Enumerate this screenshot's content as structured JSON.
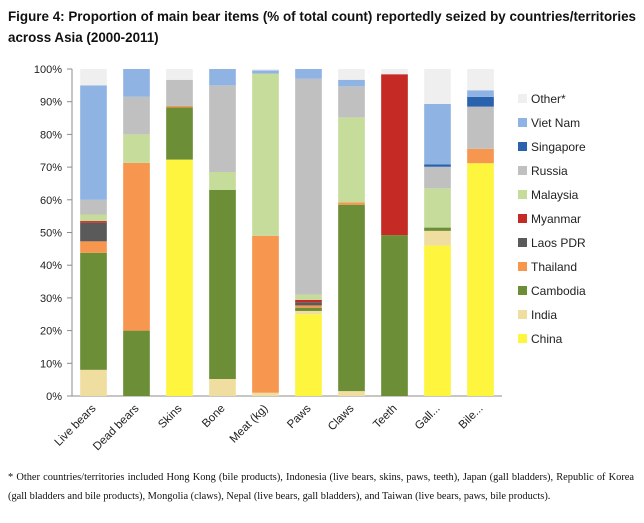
{
  "title": "Figure 4: Proportion of main bear items (% of total count) reportedly seized by countries/territories across Asia (2000-2011)",
  "footnote": "* Other countries/territories included Hong Kong (bile products), Indonesia (live bears, skins, paws, teeth), Japan (gall bladders), Republic of Korea (gall bladders and bile products), Mongolia (claws), Nepal (live bears, gall bladders), and Taiwan (live bears, paws, bile products).",
  "chart_data": {
    "type": "bar",
    "stacked": true,
    "categories": [
      "Live bears",
      "Dead bears",
      "Skins",
      "Bone",
      "Meat (kg)",
      "Paws",
      "Claws",
      "Teeth",
      "Gall...",
      "Bile..."
    ],
    "ylim": [
      0,
      100
    ],
    "yticks": [
      "0%",
      "10%",
      "20%",
      "30%",
      "40%",
      "50%",
      "60%",
      "70%",
      "80%",
      "90%",
      "100%"
    ],
    "legend_position": "right",
    "series": [
      {
        "name": "China",
        "color": "#fef53f",
        "values": [
          0,
          0,
          72.3,
          0,
          0,
          25,
          0,
          0,
          46,
          71.2
        ]
      },
      {
        "name": "India",
        "color": "#f0dea0",
        "values": [
          8,
          0,
          0,
          5.2,
          1,
          1,
          1.5,
          0,
          4.5,
          0
        ]
      },
      {
        "name": "Cambodia",
        "color": "#6b8e36",
        "values": [
          35.8,
          20,
          16,
          57.8,
          0,
          1,
          57,
          49.2,
          1,
          0
        ]
      },
      {
        "name": "Thailand",
        "color": "#f6964f",
        "values": [
          3.5,
          51.3,
          0.4,
          0,
          48,
          0.7,
          0.7,
          0,
          0,
          4.4
        ]
      },
      {
        "name": "Laos PDR",
        "color": "#5a5a5a",
        "values": [
          5.7,
          0,
          0,
          0,
          0,
          1,
          0,
          0,
          0,
          0
        ]
      },
      {
        "name": "Myanmar",
        "color": "#c52a24",
        "values": [
          0.5,
          0,
          0,
          0,
          0,
          0.7,
          0,
          49.2,
          0,
          0
        ]
      },
      {
        "name": "Malaysia",
        "color": "#c6dc9b",
        "values": [
          2,
          8.7,
          0,
          5.5,
          49.6,
          1.6,
          26,
          0,
          12,
          0
        ]
      },
      {
        "name": "Russia",
        "color": "#c0c0c0",
        "values": [
          4.5,
          11.5,
          8,
          26.5,
          0,
          66,
          9.5,
          0,
          6.6,
          12.9
        ]
      },
      {
        "name": "Singapore",
        "color": "#2b62ad",
        "values": [
          0,
          0,
          0,
          0,
          0,
          0,
          0,
          0,
          0.7,
          3
        ]
      },
      {
        "name": "Viet Nam",
        "color": "#8fb4e3",
        "values": [
          35,
          8.5,
          0,
          5,
          1,
          3,
          2,
          0,
          18.5,
          2
        ]
      },
      {
        "name": "Other*",
        "color": "#efefef",
        "values": [
          5,
          0,
          3.3,
          0,
          0.4,
          0,
          3.3,
          1.6,
          10.7,
          6.5
        ]
      }
    ]
  }
}
